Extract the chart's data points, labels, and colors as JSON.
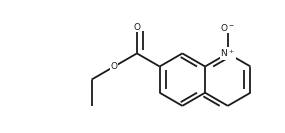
{
  "bg_color": "#ffffff",
  "bond_color": "#1a1a1a",
  "lw": 1.3,
  "figsize": [
    2.85,
    1.33
  ],
  "dpi": 100,
  "scale": 0.068,
  "ox": 0.5,
  "oy": 0.5
}
